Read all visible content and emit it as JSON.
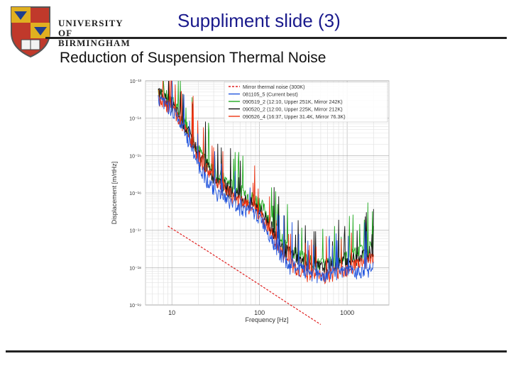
{
  "header": {
    "university_line1": "UNIVERSITY OF",
    "university_line2": "BIRMINGHAM",
    "slide_title": "Suppliment slide (3)",
    "subtitle": "Reduction of Suspension Thermal Noise"
  },
  "colors": {
    "title": "#1a1a8c",
    "rule": "#222222",
    "shield_red": "#c0392b",
    "shield_gold": "#e0b020",
    "shield_blue": "#1f3f8f"
  },
  "chart_data": {
    "type": "line",
    "title": "",
    "xlabel": "Frequency [Hz]",
    "ylabel": "Displacement [m/rtHz]",
    "xscale": "log",
    "yscale": "log",
    "xlim": [
      5,
      3000
    ],
    "ylim": [
      1e-19,
      1e-13
    ],
    "xtick_labels": [
      "10",
      "100",
      "1000"
    ],
    "ytick_labels": [
      "10⁻¹³",
      "10⁻¹⁴",
      "10⁻¹⁵",
      "10⁻¹⁶",
      "10⁻¹⁷",
      "10⁻¹⁸",
      "10⁻¹⁹"
    ],
    "grid": true,
    "legend_position": "top-right",
    "series": [
      {
        "name": "Mirror thermal noise (300K)",
        "color": "#e02020",
        "style": "dashed",
        "x": [
          9,
          20,
          50,
          100,
          200,
          500
        ],
        "y": [
          1.3e-17,
          4e-18,
          1e-18,
          3.5e-19,
          1.2e-19,
          3e-20
        ]
      },
      {
        "name": "081105_5 (Current best)",
        "color": "#2255dd",
        "style": "solid",
        "x": [
          7,
          10,
          15,
          20,
          30,
          50,
          100,
          200,
          300,
          500,
          1000,
          2000
        ],
        "y": [
          3e-14,
          2e-14,
          3e-15,
          6e-16,
          1.2e-16,
          5e-17,
          2.5e-17,
          1.3e-18,
          9e-19,
          6e-19,
          8e-19,
          1e-18
        ]
      },
      {
        "name": "090519_2 (12:10, Upper 251K, Mirror 242K)",
        "color": "#22aa22",
        "style": "solid",
        "x": [
          7,
          10,
          15,
          20,
          30,
          50,
          100,
          200,
          300,
          500,
          1000,
          2000
        ],
        "y": [
          6e-14,
          3e-14,
          6e-15,
          1.5e-15,
          4e-16,
          1.5e-16,
          6e-17,
          4e-18,
          2e-18,
          1.2e-18,
          2e-18,
          4e-18
        ]
      },
      {
        "name": "090520_2 (12:00, Upper 225K, Mirror 212K)",
        "color": "#111111",
        "style": "solid",
        "x": [
          7,
          10,
          15,
          20,
          30,
          50,
          100,
          200,
          300,
          500,
          1000,
          2000
        ],
        "y": [
          5e-14,
          2.5e-14,
          5e-15,
          1.2e-15,
          3e-16,
          1e-16,
          4e-17,
          3e-18,
          1.5e-18,
          1e-18,
          1.5e-18,
          3e-18
        ]
      },
      {
        "name": "090526_4 (16:37, Upper 31.4K, Mirror 76.3K)",
        "color": "#ee3311",
        "style": "solid",
        "x": [
          7,
          10,
          15,
          20,
          30,
          50,
          100,
          200,
          300,
          500,
          1000,
          2000
        ],
        "y": [
          4e-14,
          2e-14,
          4e-15,
          1e-15,
          2.5e-16,
          8e-17,
          3e-17,
          1.6e-18,
          8e-19,
          6e-19,
          1e-18,
          2e-18
        ]
      }
    ]
  }
}
